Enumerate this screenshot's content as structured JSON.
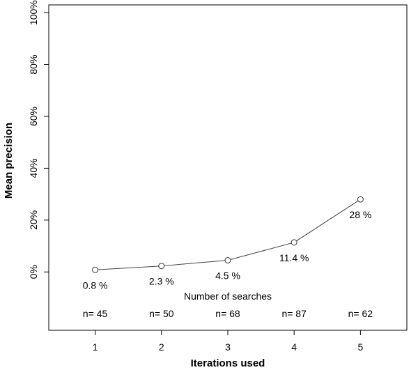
{
  "chart_data": {
    "type": "line",
    "x": [
      1,
      2,
      3,
      4,
      5
    ],
    "values": [
      0.8,
      2.3,
      4.5,
      11.4,
      28
    ],
    "point_labels": [
      "0.8 %",
      "2.3 %",
      "4.5 %",
      "11.4 %",
      "28 %"
    ],
    "xlabel": "Iterations used",
    "ylabel": "Mean precision",
    "xticks": [
      "1",
      "2",
      "3",
      "4",
      "5"
    ],
    "yticks": [
      {
        "value": 0,
        "label": "0%"
      },
      {
        "value": 20,
        "label": "20%"
      },
      {
        "value": 40,
        "label": "40%"
      },
      {
        "value": 60,
        "label": "60%"
      },
      {
        "value": 80,
        "label": "80%"
      },
      {
        "value": 100,
        "label": "100%"
      }
    ],
    "xlim": [
      0.3,
      5.7
    ],
    "ylim": [
      -22.5,
      103
    ],
    "searches_title": "Number of searches",
    "searches": [
      "n= 45",
      "n= 50",
      "n= 68",
      "n= 87",
      "n= 62"
    ],
    "line_color": "#444444",
    "marker": "open-circle",
    "grid": false
  }
}
